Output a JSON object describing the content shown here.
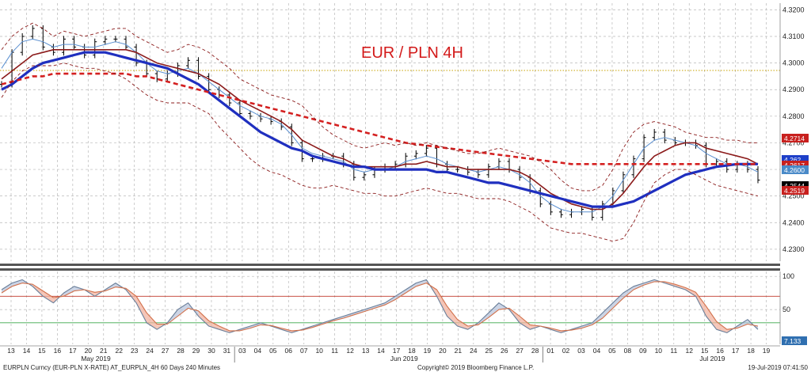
{
  "chart_data": [
    {
      "type": "line",
      "title": "EUR / PLN 4H",
      "ylim": [
        4.2255,
        4.3225
      ],
      "y_ticks": [
        "4.3200",
        "4.3100",
        "4.3000",
        "4.2900",
        "4.2800",
        "4.2700",
        "4.2600",
        "4.2500",
        "4.2400",
        "4.2300"
      ],
      "x_date_labels": [
        "13",
        "14",
        "15",
        "16",
        "17",
        "20",
        "21",
        "22",
        "23",
        "24",
        "27",
        "28",
        "29",
        "30",
        "31",
        "03",
        "04",
        "05",
        "06",
        "07",
        "10",
        "11",
        "12",
        "13",
        "14",
        "17",
        "18",
        "19",
        "20",
        "21",
        "24",
        "25",
        "26",
        "27",
        "28",
        "01",
        "02",
        "03",
        "04",
        "05",
        "08",
        "09",
        "10",
        "11",
        "12",
        "15",
        "16",
        "17",
        "18",
        "19"
      ],
      "x_month_labels": [
        "May 2019",
        "Jun 2019",
        "Jul 2019"
      ],
      "reference_line": {
        "value": 4.2972,
        "style": "dotted",
        "color": "#c8a100"
      },
      "price_badges": [
        {
          "value": "4.2714",
          "color": "#c8201e"
        },
        {
          "value": "4.262",
          "color": "#1e3fc8"
        },
        {
          "value": "4.2617",
          "color": "#c8201e"
        },
        {
          "value": "4.2600",
          "color": "#4a8ac8"
        },
        {
          "value": "4.2544",
          "color": "#000000"
        },
        {
          "value": "4.2519",
          "color": "#c8201e"
        }
      ],
      "series": [
        {
          "key": "price",
          "style": "candles",
          "color": "#000000",
          "values": [
            4.292,
            4.304,
            4.31,
            4.313,
            4.306,
            4.304,
            4.309,
            4.306,
            4.303,
            4.308,
            4.309,
            4.309,
            4.306,
            4.3,
            4.296,
            4.294,
            4.296,
            4.299,
            4.301,
            4.295,
            4.29,
            4.288,
            4.285,
            4.281,
            4.28,
            4.279,
            4.278,
            4.276,
            4.27,
            4.264,
            4.264,
            4.265,
            4.265,
            4.262,
            4.257,
            4.258,
            4.26,
            4.261,
            4.262,
            4.265,
            4.266,
            4.268,
            4.262,
            4.26,
            4.26,
            4.259,
            4.258,
            4.261,
            4.263,
            4.26,
            4.257,
            4.252,
            4.247,
            4.244,
            4.243,
            4.244,
            4.245,
            4.242,
            4.247,
            4.252,
            4.258,
            4.264,
            4.272,
            4.274,
            4.271,
            4.27,
            4.27,
            4.269,
            4.262,
            4.263,
            4.26,
            4.262,
            4.26,
            4.256
          ]
        },
        {
          "key": "sma_short",
          "style": "solid",
          "color": "#5a8fd0",
          "values": [
            4.298,
            4.304,
            4.308,
            4.309,
            4.308,
            4.306,
            4.307,
            4.307,
            4.306,
            4.306,
            4.307,
            4.308,
            4.307,
            4.304,
            4.3,
            4.297,
            4.296,
            4.297,
            4.298,
            4.296,
            4.293,
            4.29,
            4.287,
            4.284,
            4.282,
            4.28,
            4.279,
            4.277,
            4.273,
            4.268,
            4.266,
            4.265,
            4.264,
            4.263,
            4.26,
            4.259,
            4.26,
            4.26,
            4.261,
            4.263,
            4.264,
            4.265,
            4.264,
            4.262,
            4.261,
            4.26,
            4.259,
            4.26,
            4.261,
            4.26,
            4.258,
            4.255,
            4.25,
            4.247,
            4.245,
            4.244,
            4.244,
            4.244,
            4.246,
            4.25,
            4.256,
            4.262,
            4.268,
            4.271,
            4.272,
            4.271,
            4.27,
            4.269,
            4.266,
            4.264,
            4.262,
            4.262,
            4.261,
            4.259
          ]
        },
        {
          "key": "ema_mid",
          "style": "solid",
          "color": "#8b1a1a",
          "values": [
            4.294,
            4.297,
            4.3,
            4.303,
            4.304,
            4.305,
            4.305,
            4.305,
            4.305,
            4.305,
            4.305,
            4.305,
            4.305,
            4.304,
            4.302,
            4.3,
            4.299,
            4.298,
            4.297,
            4.296,
            4.294,
            4.292,
            4.289,
            4.286,
            4.284,
            4.282,
            4.28,
            4.278,
            4.275,
            4.271,
            4.269,
            4.267,
            4.265,
            4.264,
            4.262,
            4.261,
            4.261,
            4.261,
            4.261,
            4.262,
            4.262,
            4.263,
            4.262,
            4.261,
            4.261,
            4.26,
            4.26,
            4.26,
            4.26,
            4.26,
            4.259,
            4.257,
            4.254,
            4.251,
            4.249,
            4.247,
            4.246,
            4.245,
            4.245,
            4.247,
            4.251,
            4.256,
            4.261,
            4.265,
            4.267,
            4.269,
            4.27,
            4.27,
            4.268,
            4.267,
            4.266,
            4.265,
            4.264,
            4.262
          ]
        },
        {
          "key": "sma_long",
          "style": "solid",
          "color": "#1f2fbf",
          "values": [
            4.29,
            4.292,
            4.295,
            4.298,
            4.3,
            4.301,
            4.302,
            4.303,
            4.304,
            4.304,
            4.304,
            4.303,
            4.302,
            4.301,
            4.3,
            4.299,
            4.298,
            4.296,
            4.294,
            4.292,
            4.289,
            4.286,
            4.283,
            4.28,
            4.277,
            4.274,
            4.272,
            4.27,
            4.268,
            4.267,
            4.265,
            4.264,
            4.263,
            4.262,
            4.261,
            4.261,
            4.26,
            4.26,
            4.26,
            4.26,
            4.26,
            4.26,
            4.259,
            4.259,
            4.258,
            4.257,
            4.256,
            4.255,
            4.255,
            4.254,
            4.253,
            4.252,
            4.251,
            4.25,
            4.249,
            4.248,
            4.247,
            4.246,
            4.246,
            4.246,
            4.247,
            4.248,
            4.25,
            4.252,
            4.254,
            4.256,
            4.258,
            4.259,
            4.26,
            4.261,
            4.2615,
            4.262,
            4.262,
            4.262
          ]
        },
        {
          "key": "sma_200",
          "style": "dashed",
          "color": "#d42020",
          "values": [
            4.292,
            4.293,
            4.294,
            4.295,
            4.295,
            4.296,
            4.296,
            4.296,
            4.296,
            4.296,
            4.296,
            4.296,
            4.296,
            4.295,
            4.295,
            4.294,
            4.293,
            4.292,
            4.291,
            4.29,
            4.289,
            4.288,
            4.287,
            4.286,
            4.285,
            4.284,
            4.283,
            4.282,
            4.281,
            4.28,
            4.279,
            4.278,
            4.277,
            4.276,
            4.275,
            4.274,
            4.273,
            4.272,
            4.271,
            4.27,
            4.2695,
            4.269,
            4.2685,
            4.268,
            4.2675,
            4.267,
            4.2665,
            4.266,
            4.2655,
            4.265,
            4.2645,
            4.264,
            4.2635,
            4.263,
            4.2625,
            4.262,
            4.262,
            4.262,
            4.262,
            4.262,
            4.262,
            4.262,
            4.262,
            4.262,
            4.262,
            4.262,
            4.262,
            4.262,
            4.262,
            4.262,
            4.262,
            4.262,
            4.262,
            4.262
          ]
        },
        {
          "key": "bb_upper",
          "style": "dashed-thin",
          "color": "#8b1a1a",
          "values": [
            4.305,
            4.31,
            4.313,
            4.315,
            4.313,
            4.31,
            4.312,
            4.311,
            4.31,
            4.311,
            4.312,
            4.313,
            4.313,
            4.31,
            4.308,
            4.306,
            4.304,
            4.305,
            4.307,
            4.306,
            4.304,
            4.301,
            4.298,
            4.294,
            4.292,
            4.29,
            4.288,
            4.287,
            4.286,
            4.284,
            4.28,
            4.276,
            4.273,
            4.271,
            4.269,
            4.268,
            4.269,
            4.27,
            4.269,
            4.27,
            4.269,
            4.27,
            4.269,
            4.268,
            4.267,
            4.266,
            4.266,
            4.267,
            4.268,
            4.267,
            4.266,
            4.265,
            4.263,
            4.26,
            4.256,
            4.253,
            4.252,
            4.252,
            4.254,
            4.26,
            4.268,
            4.274,
            4.277,
            4.278,
            4.277,
            4.276,
            4.274,
            4.273,
            4.272,
            4.272,
            4.271,
            4.271,
            4.27,
            4.27
          ]
        },
        {
          "key": "bb_lower",
          "style": "dashed-thin",
          "color": "#8b1a1a",
          "values": [
            4.287,
            4.293,
            4.297,
            4.299,
            4.299,
            4.299,
            4.3,
            4.299,
            4.298,
            4.298,
            4.297,
            4.296,
            4.294,
            4.291,
            4.288,
            4.286,
            4.285,
            4.285,
            4.285,
            4.283,
            4.281,
            4.276,
            4.272,
            4.268,
            4.264,
            4.261,
            4.259,
            4.258,
            4.256,
            4.254,
            4.253,
            4.253,
            4.254,
            4.253,
            4.252,
            4.251,
            4.251,
            4.25,
            4.25,
            4.251,
            4.252,
            4.253,
            4.252,
            4.251,
            4.251,
            4.25,
            4.249,
            4.249,
            4.249,
            4.248,
            4.246,
            4.244,
            4.241,
            4.238,
            4.237,
            4.236,
            4.236,
            4.235,
            4.234,
            4.233,
            4.234,
            4.24,
            4.248,
            4.255,
            4.258,
            4.26,
            4.26,
            4.258,
            4.256,
            4.254,
            4.253,
            4.252,
            4.251,
            4.25
          ]
        }
      ]
    },
    {
      "type": "line",
      "title": "",
      "ylim": [
        0,
        105
      ],
      "y_ticks": [
        "100",
        "50"
      ],
      "levels": [
        {
          "value": 70,
          "color": "#c0392b"
        },
        {
          "value": 30,
          "color": "#3aa84a"
        }
      ],
      "value_badge": {
        "value": "7.133",
        "color": "#2f6fb0"
      },
      "series": [
        {
          "key": "stoch_k",
          "style": "solid",
          "color": "#6a7f9a",
          "values": [
            80,
            90,
            95,
            85,
            70,
            60,
            75,
            85,
            80,
            70,
            80,
            90,
            80,
            60,
            30,
            20,
            30,
            50,
            60,
            40,
            25,
            20,
            15,
            20,
            25,
            30,
            25,
            20,
            15,
            20,
            25,
            30,
            35,
            40,
            45,
            50,
            55,
            60,
            70,
            80,
            90,
            95,
            70,
            40,
            25,
            20,
            30,
            45,
            60,
            50,
            30,
            20,
            25,
            20,
            15,
            20,
            25,
            30,
            45,
            60,
            75,
            85,
            90,
            95,
            90,
            85,
            80,
            70,
            40,
            20,
            15,
            25,
            35,
            20
          ]
        },
        {
          "key": "stoch_d",
          "style": "solid",
          "color": "#d2704a",
          "values": [
            75,
            85,
            90,
            88,
            78,
            68,
            70,
            78,
            80,
            76,
            78,
            84,
            82,
            70,
            45,
            28,
            28,
            40,
            52,
            48,
            33,
            25,
            18,
            18,
            22,
            27,
            26,
            22,
            18,
            19,
            23,
            28,
            33,
            37,
            42,
            47,
            52,
            57,
            65,
            75,
            85,
            90,
            80,
            55,
            35,
            25,
            27,
            38,
            50,
            52,
            40,
            27,
            25,
            22,
            18,
            19,
            22,
            27,
            37,
            52,
            67,
            80,
            87,
            92,
            92,
            88,
            83,
            76,
            55,
            32,
            20,
            22,
            28,
            25
          ]
        }
      ]
    }
  ],
  "footer": {
    "instrument": "EURPLN Curncy (EUR-PLN X-RATE) AT_EURPLN_4H 60 Days 240 Minutes",
    "copyright": "Copyright© 2019 Bloomberg Finance L.P.",
    "timestamp": "19-Jul-2019 07:41:50"
  }
}
